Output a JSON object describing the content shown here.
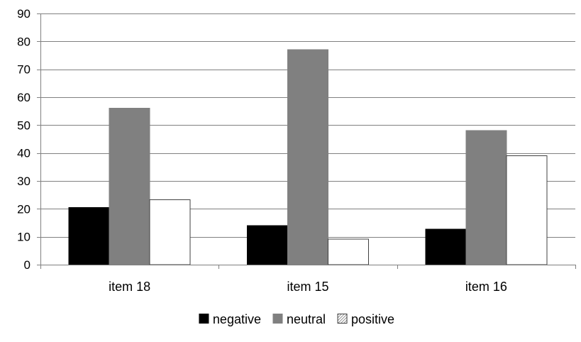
{
  "chart_data": {
    "type": "bar",
    "title": "",
    "xlabel": "",
    "ylabel": "",
    "categories": [
      "item 18",
      "item 15",
      "item 16"
    ],
    "series": [
      {
        "name": "negative",
        "values": [
          20.5,
          14,
          12.7
        ],
        "color": "#000000",
        "pattern": "solid"
      },
      {
        "name": "neutral",
        "values": [
          56,
          77,
          48
        ],
        "color": "#808080",
        "pattern": "solid"
      },
      {
        "name": "positive",
        "values": [
          23.3,
          9.2,
          39
        ],
        "color": "#ffffff",
        "pattern": "light-diagonal-hatch"
      }
    ],
    "ylim": [
      0,
      90
    ],
    "yticks": [
      0,
      10,
      20,
      30,
      40,
      50,
      60,
      70,
      80,
      90
    ],
    "grid": true,
    "legend_position": "bottom"
  }
}
